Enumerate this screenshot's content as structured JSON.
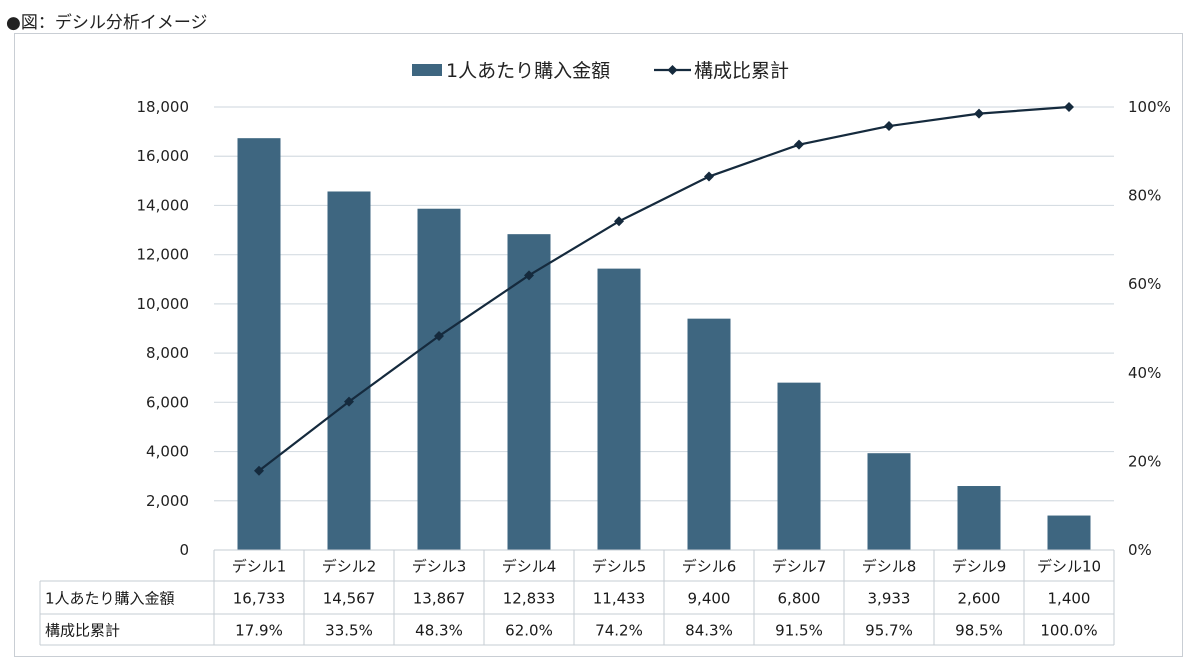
{
  "caption": "●図：デシル分析イメージ",
  "chart_data": {
    "type": "bar+line",
    "categories": [
      "デシル1",
      "デシル2",
      "デシル3",
      "デシル4",
      "デシル5",
      "デシル6",
      "デシル7",
      "デシル8",
      "デシル9",
      "デシル10"
    ],
    "series": [
      {
        "name": "1人あたり購入金額",
        "type": "bar",
        "axis": "left",
        "values": [
          16733,
          14567,
          13867,
          12833,
          11433,
          9400,
          6800,
          3933,
          2600,
          1400
        ],
        "labels": [
          "16,733",
          "14,567",
          "13,867",
          "12,833",
          "11,433",
          "9,400",
          "6,800",
          "3,933",
          "2,600",
          "1,400"
        ]
      },
      {
        "name": "構成比累計",
        "type": "line",
        "axis": "right",
        "values": [
          17.9,
          33.5,
          48.3,
          62.0,
          74.2,
          84.3,
          91.5,
          95.7,
          98.5,
          100.0
        ],
        "labels": [
          "17.9%",
          "33.5%",
          "48.3%",
          "62.0%",
          "74.2%",
          "84.3%",
          "91.5%",
          "95.7%",
          "98.5%",
          "100.0%"
        ]
      }
    ],
    "y_left": {
      "min": 0,
      "max": 18000,
      "ticks": [
        "0",
        "2,000",
        "4,000",
        "6,000",
        "8,000",
        "10,000",
        "12,000",
        "14,000",
        "16,000",
        "18,000"
      ]
    },
    "y_right": {
      "min": 0,
      "max": 100,
      "ticks": [
        "0%",
        "20%",
        "40%",
        "60%",
        "80%",
        "100%"
      ]
    },
    "grid": true,
    "legend_position": "top-center",
    "data_table": true,
    "colors": {
      "bar": "#3e6680",
      "line": "#152a3d",
      "grid": "#d6dde3",
      "table_border": "#c5ccd3"
    }
  }
}
